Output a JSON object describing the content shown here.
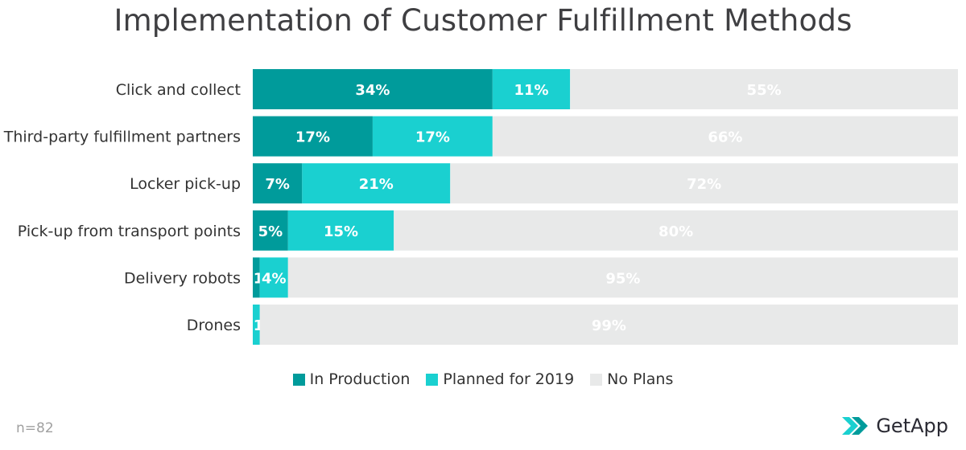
{
  "title": "Implementation of Customer Fulfillment Methods",
  "chart_data": {
    "type": "bar",
    "orientation": "horizontal",
    "stacked": true,
    "title": "Implementation of Customer Fulfillment Methods",
    "xlabel": "",
    "ylabel": "",
    "xlim": [
      0,
      100
    ],
    "categories": [
      "Click and collect",
      "Third-party fulfillment partners",
      "Locker pick-up",
      "Pick-up from transport points",
      "Delivery robots",
      "Drones"
    ],
    "series": [
      {
        "name": "In Production",
        "color": "#009b9b",
        "values": [
          34,
          17,
          7,
          5,
          1,
          0
        ],
        "labels": [
          "34%",
          "17%",
          "7%",
          "5%",
          "1%",
          ""
        ]
      },
      {
        "name": "Planned for 2019",
        "color": "#1ad0d0",
        "values": [
          11,
          17,
          21,
          15,
          4,
          1
        ],
        "labels": [
          "11%",
          "17%",
          "21%",
          "15%",
          "4%",
          "1%"
        ]
      },
      {
        "name": "No Plans",
        "color": "#e8e9e9",
        "values": [
          55,
          66,
          72,
          80,
          95,
          99
        ],
        "labels": [
          "55%",
          "66%",
          "72%",
          "80%",
          "95%",
          "99%"
        ]
      }
    ],
    "legend_position": "bottom"
  },
  "footer": {
    "sample_size": "n=82",
    "brand": "GetApp",
    "brand_icon": "getapp-chevron-logo"
  }
}
